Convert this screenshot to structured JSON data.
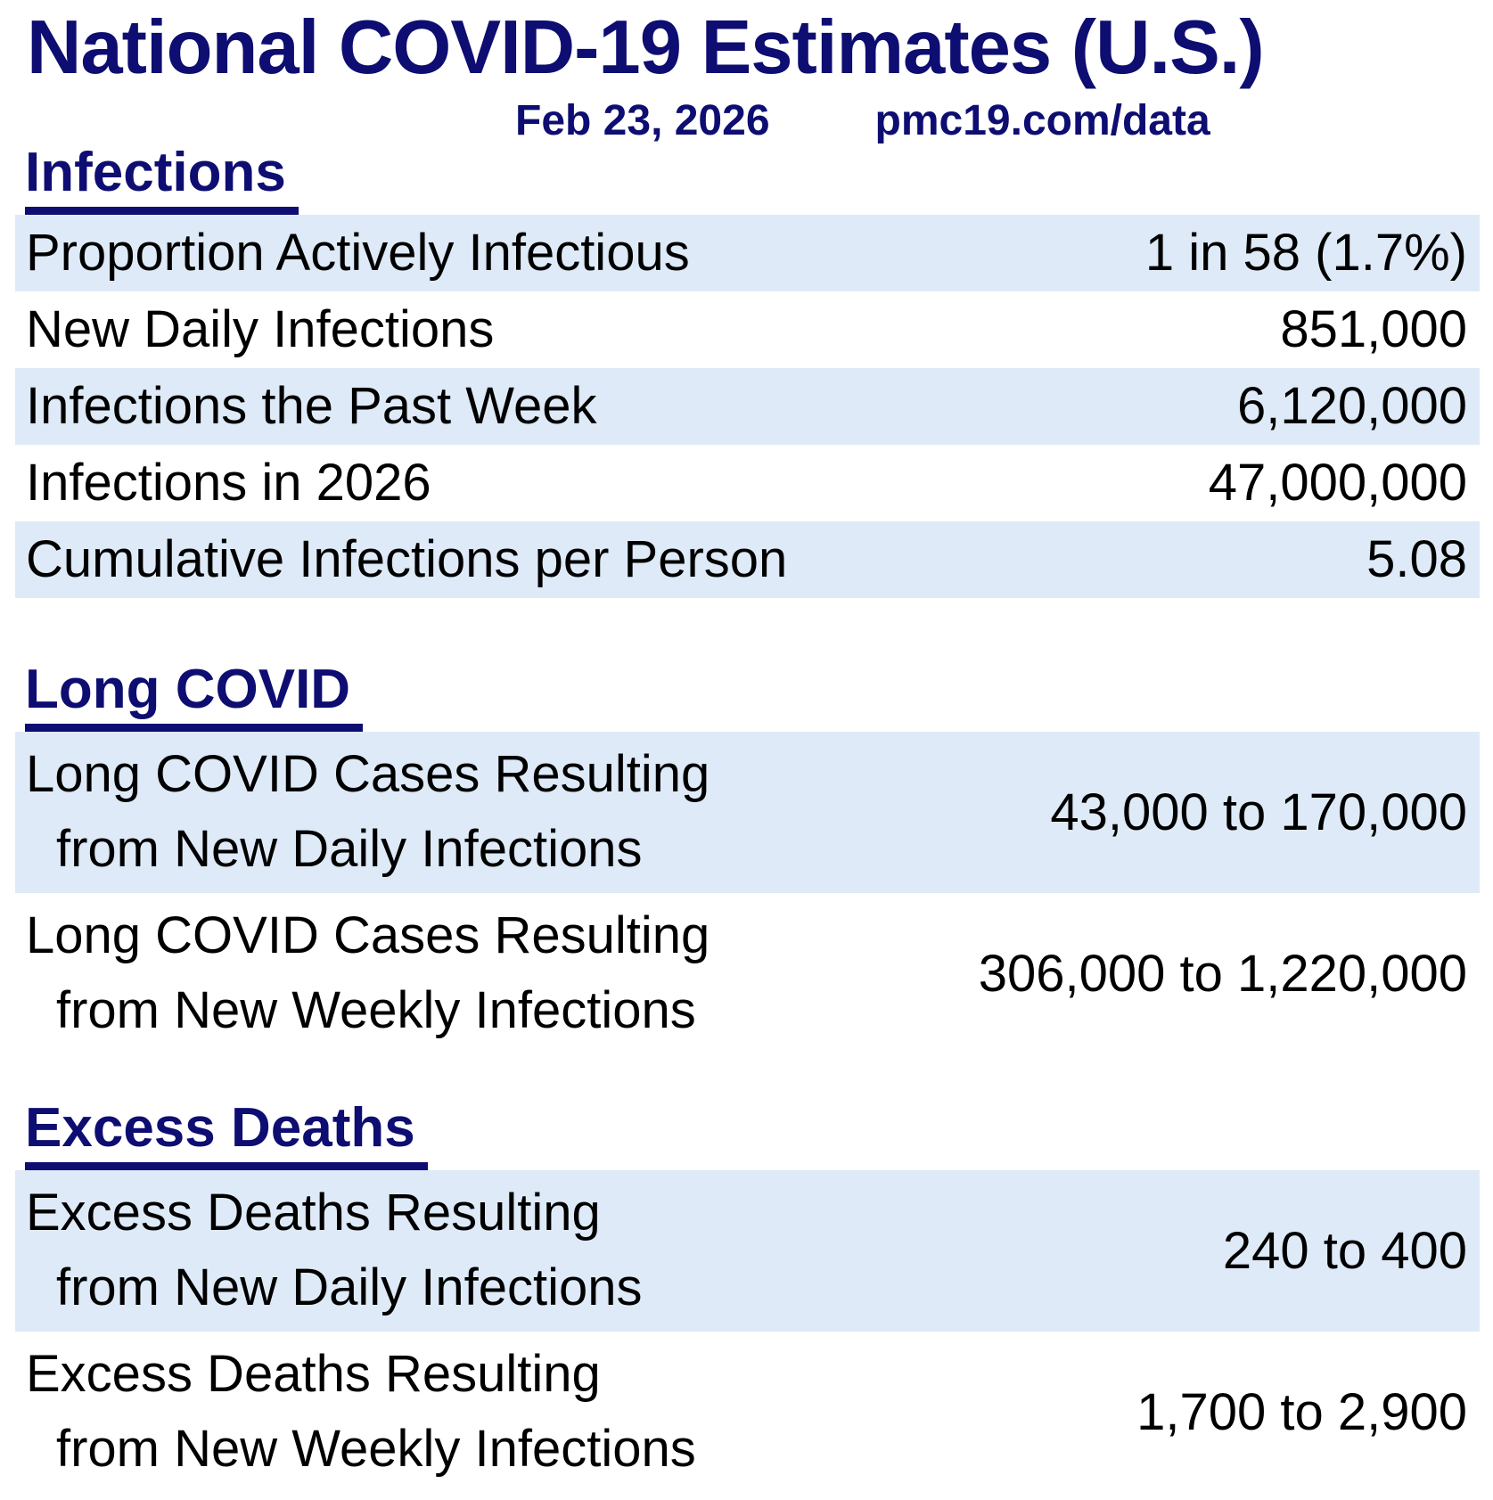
{
  "header": {
    "title": "National COVID-19 Estimates (U.S.)",
    "date": "Feb 23, 2026",
    "source": "pmc19.com/data"
  },
  "colors": {
    "navy": "#0d0d72",
    "row_highlight": "#deeaf7",
    "body_text": "#000000",
    "background": "#ffffff"
  },
  "chart_data": {
    "type": "table",
    "title": "National COVID-19 Estimates (U.S.)",
    "date": "Feb 23, 2026",
    "source": "pmc19.com/data",
    "sections": [
      {
        "heading": "Infections",
        "rows": [
          {
            "label": "Proportion Actively Infectious",
            "value": "1 in 58 (1.7%)",
            "highlighted": true
          },
          {
            "label": "New Daily Infections",
            "value": "851,000",
            "highlighted": false
          },
          {
            "label": "Infections the Past Week",
            "value": "6,120,000",
            "highlighted": true
          },
          {
            "label": "Infections in 2026",
            "value": "47,000,000",
            "highlighted": false
          },
          {
            "label": "Cumulative Infections per Person",
            "value": "5.08",
            "highlighted": true
          }
        ]
      },
      {
        "heading": "Long COVID",
        "rows": [
          {
            "label_line1": "Long COVID Cases Resulting",
            "label_line2": "from New Daily Infections",
            "value": "43,000 to 170,000",
            "highlighted": true
          },
          {
            "label_line1": "Long COVID Cases Resulting",
            "label_line2": "from New Weekly Infections",
            "value": "306,000 to 1,220,000",
            "highlighted": false
          }
        ]
      },
      {
        "heading": "Excess Deaths",
        "rows": [
          {
            "label_line1": "Excess Deaths Resulting",
            "label_line2": "from New Daily Infections",
            "value": "240 to 400",
            "highlighted": true
          },
          {
            "label_line1": "Excess Deaths Resulting",
            "label_line2": "from New Weekly Infections",
            "value": "1,700 to 2,900",
            "highlighted": false
          }
        ]
      }
    ]
  }
}
